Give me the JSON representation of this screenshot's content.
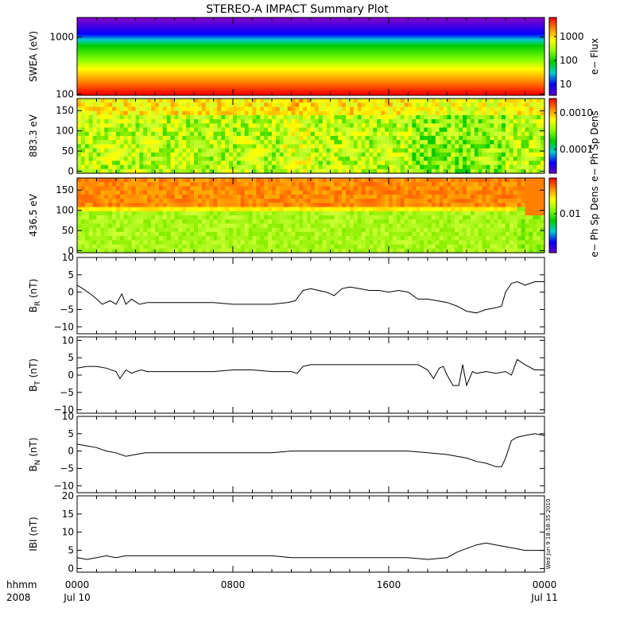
{
  "chart_data": {
    "title": "STEREO-A IMPACT Summary Plot",
    "type": "line",
    "time": {
      "label_left": "hhmm",
      "year": "2008",
      "ticks": [
        "0000",
        "0800",
        "1600",
        "0000"
      ],
      "dates": [
        "Jul 10",
        "Jul 11"
      ],
      "range_hours": [
        0,
        24
      ]
    },
    "stamp": "Wed Jun 9 18:58:35 2010",
    "panels": [
      {
        "id": "swea",
        "type": "heatmap",
        "ylabel": "SWEA (eV)",
        "ylog": true,
        "ylim": [
          95,
          2200
        ],
        "yticks": [
          "1000",
          "100"
        ],
        "ytick_values": [
          1000,
          100
        ],
        "colorbar": {
          "label": "e− Flux",
          "ticks": [
            "1000",
            "100",
            "10"
          ],
          "log": true
        },
        "colors": [
          "#ff0000",
          "#ff8800",
          "#ffff00",
          "#88ff00",
          "#00cc00",
          "#00cccc",
          "#0000ff",
          "#7700cc"
        ],
        "color_stops_log_ev": [
          2.0,
          2.22,
          2.44,
          2.6,
          2.85,
          2.95,
          3.05,
          3.3
        ]
      },
      {
        "id": "pad883",
        "type": "heatmap",
        "ylabel": "883.3 eV",
        "ylim": [
          -5,
          180
        ],
        "yticks": [
          "150",
          "100",
          "50",
          "0"
        ],
        "ytick_values": [
          150,
          100,
          50,
          0
        ],
        "colorbar": {
          "label": "e− Ph Sp Dens",
          "ticks": [
            "0.0010",
            "0.0001"
          ],
          "log": true
        }
      },
      {
        "id": "pad436",
        "type": "heatmap",
        "ylabel": "436.5 eV",
        "ylim": [
          -5,
          180
        ],
        "yticks": [
          "150",
          "100",
          "50",
          "0"
        ],
        "ytick_values": [
          150,
          100,
          50,
          0
        ],
        "colorbar": {
          "label": "e− Ph Sp Dens",
          "ticks": [
            "0.01"
          ],
          "log": true
        }
      },
      {
        "id": "br",
        "type": "line",
        "ylabel_main": "B",
        "ylabel_sub": "R",
        "ylabel_unit": " (nT)",
        "ylim": [
          -12,
          10
        ],
        "yticks": [
          "10",
          "5",
          "0",
          "−5",
          "−10"
        ],
        "ytick_values": [
          10,
          5,
          0,
          -5,
          -10
        ],
        "x": [
          0,
          0.3,
          0.8,
          1.3,
          1.7,
          2.0,
          2.3,
          2.5,
          2.8,
          3.2,
          3.6,
          4.0,
          5.0,
          6.0,
          7.0,
          8.0,
          9.0,
          10.0,
          10.8,
          11.2,
          11.6,
          12.0,
          12.4,
          12.8,
          13.2,
          13.6,
          14.0,
          14.5,
          15.0,
          15.5,
          16.0,
          16.5,
          17.0,
          17.5,
          18.0,
          18.5,
          19.0,
          19.5,
          20.0,
          20.5,
          21.0,
          21.5,
          21.8,
          22.0,
          22.3,
          22.6,
          23.0,
          23.5,
          24.0
        ],
        "y": [
          2,
          1,
          -1,
          -3.5,
          -2.5,
          -3.5,
          -0.5,
          -3.5,
          -2,
          -3.5,
          -3,
          -3,
          -3,
          -3,
          -3,
          -3.5,
          -3.5,
          -3.5,
          -3,
          -2.5,
          0.5,
          1,
          0.5,
          0,
          -1,
          1,
          1.5,
          1,
          0.5,
          0.5,
          0,
          0.5,
          0,
          -2,
          -2,
          -2.5,
          -3,
          -4,
          -5.5,
          -6,
          -5,
          -4.5,
          -4,
          0,
          2.5,
          3,
          2,
          3,
          3
        ]
      },
      {
        "id": "bt",
        "type": "line",
        "ylabel_main": "B",
        "ylabel_sub": "T",
        "ylabel_unit": " (nT)",
        "ylim": [
          -11,
          11
        ],
        "yticks": [
          "10",
          "5",
          "0",
          "−5",
          "−10"
        ],
        "ytick_values": [
          10,
          5,
          0,
          -5,
          -10
        ],
        "x": [
          0,
          0.5,
          1.0,
          1.5,
          2.0,
          2.2,
          2.5,
          2.8,
          3.0,
          3.3,
          3.6,
          4.0,
          5.0,
          6.0,
          7.0,
          8.0,
          9.0,
          10.0,
          11.0,
          11.3,
          11.6,
          12.0,
          13.0,
          14.0,
          15.0,
          16.0,
          17.0,
          17.5,
          18.0,
          18.3,
          18.6,
          18.8,
          19.0,
          19.3,
          19.6,
          19.8,
          20.0,
          20.3,
          20.5,
          21.0,
          21.5,
          22.0,
          22.3,
          22.6,
          23.0,
          23.5,
          24.0
        ],
        "y": [
          2,
          2.5,
          2.5,
          2,
          1,
          -1,
          1.5,
          0.5,
          1,
          1.5,
          1,
          1,
          1,
          1,
          1,
          1.5,
          1.5,
          1,
          1,
          0.5,
          2.5,
          3,
          3,
          3,
          3,
          3,
          3,
          3,
          1.5,
          -1,
          2,
          2.5,
          0,
          -3,
          -3,
          3,
          -3,
          1,
          0.5,
          1,
          0.5,
          1,
          0,
          4.5,
          3,
          1.5,
          1.5
        ]
      },
      {
        "id": "bn",
        "type": "line",
        "ylabel_main": "B",
        "ylabel_sub": "N",
        "ylabel_unit": " (nT)",
        "ylim": [
          -12,
          10
        ],
        "yticks": [
          "10",
          "5",
          "0",
          "−5",
          "−10"
        ],
        "ytick_values": [
          10,
          5,
          0,
          -5,
          -10
        ],
        "x": [
          0,
          0.5,
          1.0,
          1.5,
          2.0,
          2.5,
          3.0,
          3.5,
          4.0,
          5.0,
          6.0,
          7.0,
          8.0,
          9.0,
          10.0,
          11.0,
          12.0,
          13.0,
          14.0,
          15.0,
          16.0,
          17.0,
          18.0,
          19.0,
          19.5,
          20.0,
          20.5,
          21.0,
          21.5,
          21.8,
          22.0,
          22.3,
          22.6,
          23.0,
          23.5,
          24.0
        ],
        "y": [
          2,
          1.5,
          1,
          0,
          -0.5,
          -1.5,
          -1,
          -0.5,
          -0.5,
          -0.5,
          -0.5,
          -0.5,
          -0.5,
          -0.5,
          -0.5,
          0,
          0,
          0,
          0,
          0,
          0,
          0,
          -0.5,
          -1,
          -1.5,
          -2,
          -3,
          -3.5,
          -4.5,
          -4.5,
          -2,
          3,
          4,
          4.5,
          5,
          4.5
        ]
      },
      {
        "id": "bmag",
        "type": "line",
        "ylabel_main": "IBI",
        "ylabel_sub": "",
        "ylabel_unit": " (nT)",
        "ylim": [
          -1,
          20
        ],
        "yticks": [
          "20",
          "15",
          "10",
          "5",
          "0"
        ],
        "ytick_values": [
          20,
          15,
          10,
          5,
          0
        ],
        "x": [
          0,
          0.5,
          1.0,
          1.5,
          2.0,
          2.5,
          3.0,
          3.5,
          4.0,
          5.0,
          6.0,
          7.0,
          8.0,
          9.0,
          10.0,
          11.0,
          12.0,
          13.0,
          14.0,
          15.0,
          16.0,
          17.0,
          18.0,
          19.0,
          19.5,
          20.0,
          20.5,
          21.0,
          21.5,
          22.0,
          22.5,
          23.0,
          23.5,
          24.0
        ],
        "y": [
          3,
          2.5,
          3,
          3.5,
          3,
          3.5,
          3.5,
          3.5,
          3.5,
          3.5,
          3.5,
          3.5,
          3.5,
          3.5,
          3.5,
          3,
          3,
          3,
          3,
          3,
          3,
          3,
          2.5,
          3,
          4.5,
          5.5,
          6.5,
          7,
          6.5,
          6,
          5.5,
          5,
          5,
          5
        ]
      }
    ]
  }
}
